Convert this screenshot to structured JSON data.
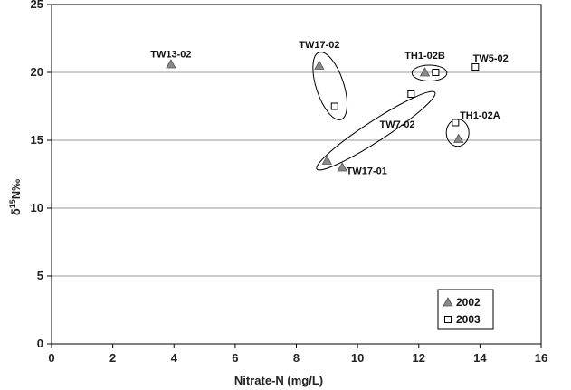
{
  "chart_data": {
    "type": "scatter",
    "xlabel": "Nitrate-N (mg/L)",
    "ylabel": "δ15N‰",
    "xlim": [
      0,
      16
    ],
    "ylim": [
      0,
      25
    ],
    "x_ticks": [
      0,
      2,
      4,
      6,
      8,
      10,
      12,
      14,
      16
    ],
    "y_ticks": [
      0,
      5,
      10,
      15,
      20,
      25
    ],
    "grid": "horizontal",
    "legend_position": "bottom-right",
    "series": [
      {
        "name": "2002",
        "marker": "triangle",
        "color": "#8a8a8a",
        "points": [
          {
            "x": 3.9,
            "y": 20.6
          },
          {
            "x": 8.75,
            "y": 20.5
          },
          {
            "x": 12.2,
            "y": 20.0
          },
          {
            "x": 13.3,
            "y": 15.1
          },
          {
            "x": 9.0,
            "y": 13.5
          },
          {
            "x": 9.5,
            "y": 13.0
          }
        ]
      },
      {
        "name": "2003",
        "marker": "square",
        "color": "#ffffff",
        "points": [
          {
            "x": 9.25,
            "y": 17.5
          },
          {
            "x": 11.75,
            "y": 18.4
          },
          {
            "x": 12.55,
            "y": 20.0
          },
          {
            "x": 13.2,
            "y": 16.3
          },
          {
            "x": 13.85,
            "y": 20.4
          }
        ]
      }
    ],
    "annotations": [
      {
        "text": "TW13-02",
        "x": 3.9,
        "y": 21.1
      },
      {
        "text": "TW17-02",
        "x": 8.75,
        "y": 21.8
      },
      {
        "text": "TH1-02B",
        "x": 12.2,
        "y": 21.0
      },
      {
        "text": "TW5-02",
        "x": 14.35,
        "y": 20.8
      },
      {
        "text": "TW7-02",
        "x": 11.3,
        "y": 15.95
      },
      {
        "text": "TH1-02A",
        "x": 14.0,
        "y": 16.6
      },
      {
        "text": "TW17-01",
        "x": 10.3,
        "y": 12.5
      }
    ],
    "ellipses": [
      {
        "cx": 9.1,
        "cy": 19.0,
        "rx": 0.45,
        "ry": 2.6,
        "rotate": -18
      },
      {
        "cx": 12.35,
        "cy": 19.95,
        "rx": 0.57,
        "ry": 0.58,
        "rotate": 0
      },
      {
        "cx": 13.27,
        "cy": 15.55,
        "rx": 0.37,
        "ry": 1.0,
        "rotate": 0
      },
      {
        "cx": 10.6,
        "cy": 15.7,
        "rx": 2.3,
        "ry": 0.75,
        "rotate": -33
      }
    ]
  }
}
